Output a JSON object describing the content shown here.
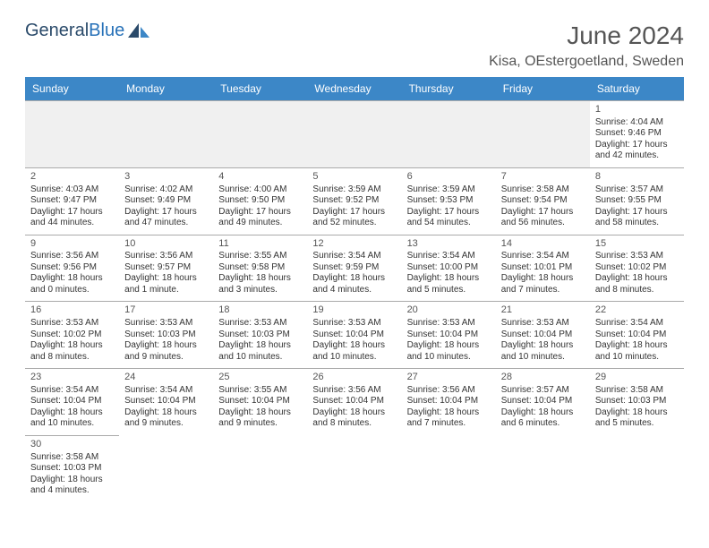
{
  "logo": {
    "part1": "General",
    "part2": "Blue"
  },
  "title": "June 2024",
  "location": "Kisa, OEstergoetland, Sweden",
  "colors": {
    "header_bg": "#3c87c7",
    "header_text": "#ffffff",
    "border": "#aaaaaa",
    "day_text": "#333333",
    "title_text": "#555555",
    "stripe_bg": "#f0f0f0"
  },
  "weekdays": [
    "Sunday",
    "Monday",
    "Tuesday",
    "Wednesday",
    "Thursday",
    "Friday",
    "Saturday"
  ],
  "weeks": [
    [
      null,
      null,
      null,
      null,
      null,
      null,
      {
        "n": "1",
        "sr": "Sunrise: 4:04 AM",
        "ss": "Sunset: 9:46 PM",
        "d1": "Daylight: 17 hours",
        "d2": "and 42 minutes."
      }
    ],
    [
      {
        "n": "2",
        "sr": "Sunrise: 4:03 AM",
        "ss": "Sunset: 9:47 PM",
        "d1": "Daylight: 17 hours",
        "d2": "and 44 minutes."
      },
      {
        "n": "3",
        "sr": "Sunrise: 4:02 AM",
        "ss": "Sunset: 9:49 PM",
        "d1": "Daylight: 17 hours",
        "d2": "and 47 minutes."
      },
      {
        "n": "4",
        "sr": "Sunrise: 4:00 AM",
        "ss": "Sunset: 9:50 PM",
        "d1": "Daylight: 17 hours",
        "d2": "and 49 minutes."
      },
      {
        "n": "5",
        "sr": "Sunrise: 3:59 AM",
        "ss": "Sunset: 9:52 PM",
        "d1": "Daylight: 17 hours",
        "d2": "and 52 minutes."
      },
      {
        "n": "6",
        "sr": "Sunrise: 3:59 AM",
        "ss": "Sunset: 9:53 PM",
        "d1": "Daylight: 17 hours",
        "d2": "and 54 minutes."
      },
      {
        "n": "7",
        "sr": "Sunrise: 3:58 AM",
        "ss": "Sunset: 9:54 PM",
        "d1": "Daylight: 17 hours",
        "d2": "and 56 minutes."
      },
      {
        "n": "8",
        "sr": "Sunrise: 3:57 AM",
        "ss": "Sunset: 9:55 PM",
        "d1": "Daylight: 17 hours",
        "d2": "and 58 minutes."
      }
    ],
    [
      {
        "n": "9",
        "sr": "Sunrise: 3:56 AM",
        "ss": "Sunset: 9:56 PM",
        "d1": "Daylight: 18 hours",
        "d2": "and 0 minutes."
      },
      {
        "n": "10",
        "sr": "Sunrise: 3:56 AM",
        "ss": "Sunset: 9:57 PM",
        "d1": "Daylight: 18 hours",
        "d2": "and 1 minute."
      },
      {
        "n": "11",
        "sr": "Sunrise: 3:55 AM",
        "ss": "Sunset: 9:58 PM",
        "d1": "Daylight: 18 hours",
        "d2": "and 3 minutes."
      },
      {
        "n": "12",
        "sr": "Sunrise: 3:54 AM",
        "ss": "Sunset: 9:59 PM",
        "d1": "Daylight: 18 hours",
        "d2": "and 4 minutes."
      },
      {
        "n": "13",
        "sr": "Sunrise: 3:54 AM",
        "ss": "Sunset: 10:00 PM",
        "d1": "Daylight: 18 hours",
        "d2": "and 5 minutes."
      },
      {
        "n": "14",
        "sr": "Sunrise: 3:54 AM",
        "ss": "Sunset: 10:01 PM",
        "d1": "Daylight: 18 hours",
        "d2": "and 7 minutes."
      },
      {
        "n": "15",
        "sr": "Sunrise: 3:53 AM",
        "ss": "Sunset: 10:02 PM",
        "d1": "Daylight: 18 hours",
        "d2": "and 8 minutes."
      }
    ],
    [
      {
        "n": "16",
        "sr": "Sunrise: 3:53 AM",
        "ss": "Sunset: 10:02 PM",
        "d1": "Daylight: 18 hours",
        "d2": "and 8 minutes."
      },
      {
        "n": "17",
        "sr": "Sunrise: 3:53 AM",
        "ss": "Sunset: 10:03 PM",
        "d1": "Daylight: 18 hours",
        "d2": "and 9 minutes."
      },
      {
        "n": "18",
        "sr": "Sunrise: 3:53 AM",
        "ss": "Sunset: 10:03 PM",
        "d1": "Daylight: 18 hours",
        "d2": "and 10 minutes."
      },
      {
        "n": "19",
        "sr": "Sunrise: 3:53 AM",
        "ss": "Sunset: 10:04 PM",
        "d1": "Daylight: 18 hours",
        "d2": "and 10 minutes."
      },
      {
        "n": "20",
        "sr": "Sunrise: 3:53 AM",
        "ss": "Sunset: 10:04 PM",
        "d1": "Daylight: 18 hours",
        "d2": "and 10 minutes."
      },
      {
        "n": "21",
        "sr": "Sunrise: 3:53 AM",
        "ss": "Sunset: 10:04 PM",
        "d1": "Daylight: 18 hours",
        "d2": "and 10 minutes."
      },
      {
        "n": "22",
        "sr": "Sunrise: 3:54 AM",
        "ss": "Sunset: 10:04 PM",
        "d1": "Daylight: 18 hours",
        "d2": "and 10 minutes."
      }
    ],
    [
      {
        "n": "23",
        "sr": "Sunrise: 3:54 AM",
        "ss": "Sunset: 10:04 PM",
        "d1": "Daylight: 18 hours",
        "d2": "and 10 minutes."
      },
      {
        "n": "24",
        "sr": "Sunrise: 3:54 AM",
        "ss": "Sunset: 10:04 PM",
        "d1": "Daylight: 18 hours",
        "d2": "and 9 minutes."
      },
      {
        "n": "25",
        "sr": "Sunrise: 3:55 AM",
        "ss": "Sunset: 10:04 PM",
        "d1": "Daylight: 18 hours",
        "d2": "and 9 minutes."
      },
      {
        "n": "26",
        "sr": "Sunrise: 3:56 AM",
        "ss": "Sunset: 10:04 PM",
        "d1": "Daylight: 18 hours",
        "d2": "and 8 minutes."
      },
      {
        "n": "27",
        "sr": "Sunrise: 3:56 AM",
        "ss": "Sunset: 10:04 PM",
        "d1": "Daylight: 18 hours",
        "d2": "and 7 minutes."
      },
      {
        "n": "28",
        "sr": "Sunrise: 3:57 AM",
        "ss": "Sunset: 10:04 PM",
        "d1": "Daylight: 18 hours",
        "d2": "and 6 minutes."
      },
      {
        "n": "29",
        "sr": "Sunrise: 3:58 AM",
        "ss": "Sunset: 10:03 PM",
        "d1": "Daylight: 18 hours",
        "d2": "and 5 minutes."
      }
    ],
    [
      {
        "n": "30",
        "sr": "Sunrise: 3:58 AM",
        "ss": "Sunset: 10:03 PM",
        "d1": "Daylight: 18 hours",
        "d2": "and 4 minutes."
      },
      null,
      null,
      null,
      null,
      null,
      null
    ]
  ]
}
